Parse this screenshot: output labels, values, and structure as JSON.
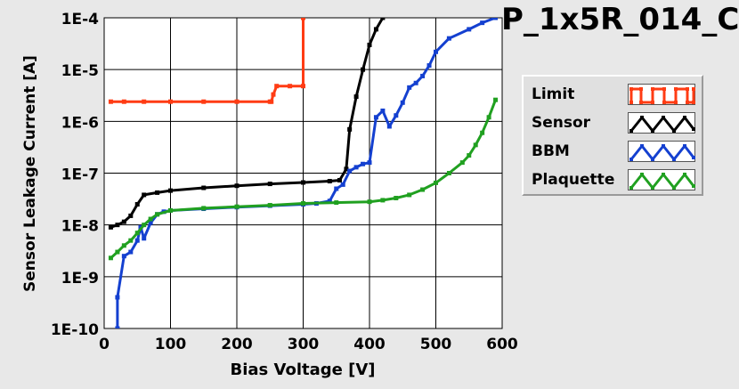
{
  "chart_data": {
    "type": "line",
    "title": "P_1x5R_014_C",
    "xlabel": "Bias Voltage [V]",
    "ylabel": "Sensor Leakage Current [A]",
    "xlim": [
      0,
      600
    ],
    "ylim": [
      1e-10,
      0.0001
    ],
    "yscale": "log",
    "grid": true,
    "legend_placement": "right",
    "xticks": [
      "0",
      "100",
      "200",
      "300",
      "400",
      "500",
      "600"
    ],
    "yticks": [
      "1E-10",
      "1E-9",
      "1E-8",
      "1E-7",
      "1E-6",
      "1E-5",
      "1E-4"
    ],
    "series": [
      {
        "name": "Limit",
        "color": "#ff3c14",
        "points": [
          [
            10,
            2.4e-06
          ],
          [
            30,
            2.4e-06
          ],
          [
            60,
            2.4e-06
          ],
          [
            100,
            2.4e-06
          ],
          [
            150,
            2.4e-06
          ],
          [
            200,
            2.4e-06
          ],
          [
            250,
            2.4e-06
          ],
          [
            252,
            2.4e-06
          ],
          [
            255,
            3.3e-06
          ],
          [
            260,
            4.8e-06
          ],
          [
            280,
            4.8e-06
          ],
          [
            300,
            4.8e-06
          ],
          [
            300,
            0.0001
          ]
        ]
      },
      {
        "name": "Sensor",
        "color": "#000000",
        "points": [
          [
            10,
            9e-09
          ],
          [
            20,
            1e-08
          ],
          [
            30,
            1.15e-08
          ],
          [
            40,
            1.5e-08
          ],
          [
            50,
            2.5e-08
          ],
          [
            60,
            3.8e-08
          ],
          [
            80,
            4.2e-08
          ],
          [
            100,
            4.6e-08
          ],
          [
            150,
            5.2e-08
          ],
          [
            200,
            5.7e-08
          ],
          [
            250,
            6.2e-08
          ],
          [
            300,
            6.6e-08
          ],
          [
            340,
            7e-08
          ],
          [
            355,
            7.3e-08
          ],
          [
            365,
            1.2e-07
          ],
          [
            370,
            7e-07
          ],
          [
            380,
            3e-06
          ],
          [
            390,
            1e-05
          ],
          [
            400,
            3e-05
          ],
          [
            410,
            6e-05
          ],
          [
            420,
            0.0001
          ]
        ]
      },
      {
        "name": "BBM",
        "color": "#1440d0",
        "points": [
          [
            20,
            1e-10
          ],
          [
            20,
            4e-10
          ],
          [
            30,
            2.5e-09
          ],
          [
            40,
            3e-09
          ],
          [
            50,
            5e-09
          ],
          [
            55,
            9e-09
          ],
          [
            60,
            5.5e-09
          ],
          [
            70,
            1.1e-08
          ],
          [
            80,
            1.6e-08
          ],
          [
            90,
            1.8e-08
          ],
          [
            100,
            1.9e-08
          ],
          [
            150,
            2.05e-08
          ],
          [
            200,
            2.2e-08
          ],
          [
            250,
            2.35e-08
          ],
          [
            300,
            2.5e-08
          ],
          [
            320,
            2.6e-08
          ],
          [
            340,
            2.9e-08
          ],
          [
            350,
            5e-08
          ],
          [
            360,
            6e-08
          ],
          [
            370,
            1.1e-07
          ],
          [
            380,
            1.3e-07
          ],
          [
            390,
            1.5e-07
          ],
          [
            400,
            1.6e-07
          ],
          [
            410,
            1.2e-06
          ],
          [
            420,
            1.6e-06
          ],
          [
            430,
            8e-07
          ],
          [
            440,
            1.3e-06
          ],
          [
            450,
            2.3e-06
          ],
          [
            460,
            4.5e-06
          ],
          [
            470,
            5.5e-06
          ],
          [
            480,
            7.5e-06
          ],
          [
            490,
            1.2e-05
          ],
          [
            500,
            2.2e-05
          ],
          [
            520,
            4e-05
          ],
          [
            550,
            6e-05
          ],
          [
            570,
            8e-05
          ],
          [
            590,
            0.0001
          ]
        ]
      },
      {
        "name": "Plaquette",
        "color": "#20a020",
        "points": [
          [
            10,
            2.3e-09
          ],
          [
            20,
            3e-09
          ],
          [
            30,
            4e-09
          ],
          [
            40,
            5e-09
          ],
          [
            50,
            7e-09
          ],
          [
            60,
            1e-08
          ],
          [
            70,
            1.3e-08
          ],
          [
            80,
            1.6e-08
          ],
          [
            100,
            1.9e-08
          ],
          [
            150,
            2.1e-08
          ],
          [
            200,
            2.25e-08
          ],
          [
            250,
            2.4e-08
          ],
          [
            300,
            2.6e-08
          ],
          [
            350,
            2.7e-08
          ],
          [
            400,
            2.8e-08
          ],
          [
            420,
            3e-08
          ],
          [
            440,
            3.3e-08
          ],
          [
            460,
            3.8e-08
          ],
          [
            480,
            4.8e-08
          ],
          [
            500,
            6.5e-08
          ],
          [
            520,
            1e-07
          ],
          [
            540,
            1.6e-07
          ],
          [
            550,
            2.2e-07
          ],
          [
            560,
            3.5e-07
          ],
          [
            570,
            6e-07
          ],
          [
            580,
            1.2e-06
          ],
          [
            590,
            2.6e-06
          ]
        ]
      }
    ]
  }
}
